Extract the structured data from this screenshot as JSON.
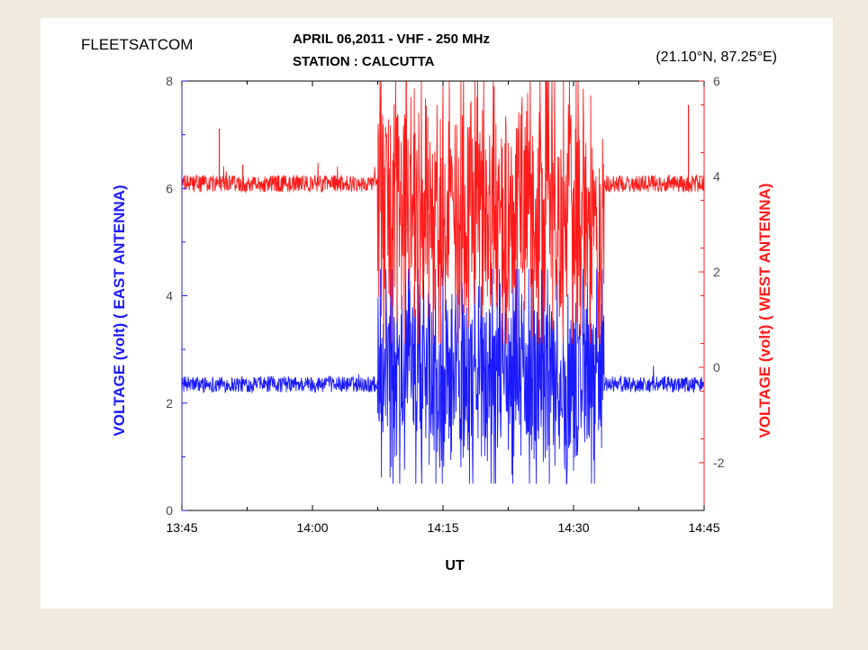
{
  "chart_data": {
    "type": "line",
    "top_left_label": "FLEETSATCOM",
    "title": "APRIL 06,2011 - VHF - 250 MHz",
    "subtitle": "STATION : CALCUTTA",
    "coords_label": "(21.10°N, 87.25°E)",
    "xlabel": "UT",
    "ylabel_left": "VOLTAGE (volt) ( EAST ANTENNA)",
    "ylabel_right": "VOLTAGE (volt)  ( WEST ANTENNA)",
    "x_tick_labels": [
      "13:45",
      "14:00",
      "14:15",
      "14:30",
      "14:45"
    ],
    "x_tick_minutes": [
      0,
      15,
      30,
      45,
      60
    ],
    "xlim_minutes": [
      0,
      60
    ],
    "ylim_left": [
      0,
      8
    ],
    "ylim_right": [
      -3,
      6
    ],
    "y_ticks_left": [
      0,
      2,
      4,
      6,
      8
    ],
    "y_ticks_right": [
      -2,
      0,
      2,
      4,
      6
    ],
    "colors": {
      "left_axis": "#1a1aff",
      "right_axis": "#ff1a1a"
    },
    "grid": false,
    "series": [
      {
        "axis": "left",
        "color": "#1a1aff",
        "quiet_level": 2.35,
        "quiet_jitter": 0.15,
        "scint_start_min": 22.5,
        "scint_end_min": 48.5,
        "scint_min": 0.5,
        "scint_max": 4.5,
        "spikes": []
      },
      {
        "axis": "right",
        "color": "#ff1a1a",
        "quiet_level": 3.85,
        "quiet_jitter": 0.18,
        "scint_start_min": 22.5,
        "scint_end_min": 48.5,
        "scint_min": 0.5,
        "scint_max": 6.0,
        "spikes": [
          {
            "x_min": 7.0,
            "value": 4.25
          },
          {
            "x_min": 4.3,
            "value": 5.0
          },
          {
            "x_min": 58.2,
            "value": 5.5
          }
        ]
      }
    ]
  }
}
